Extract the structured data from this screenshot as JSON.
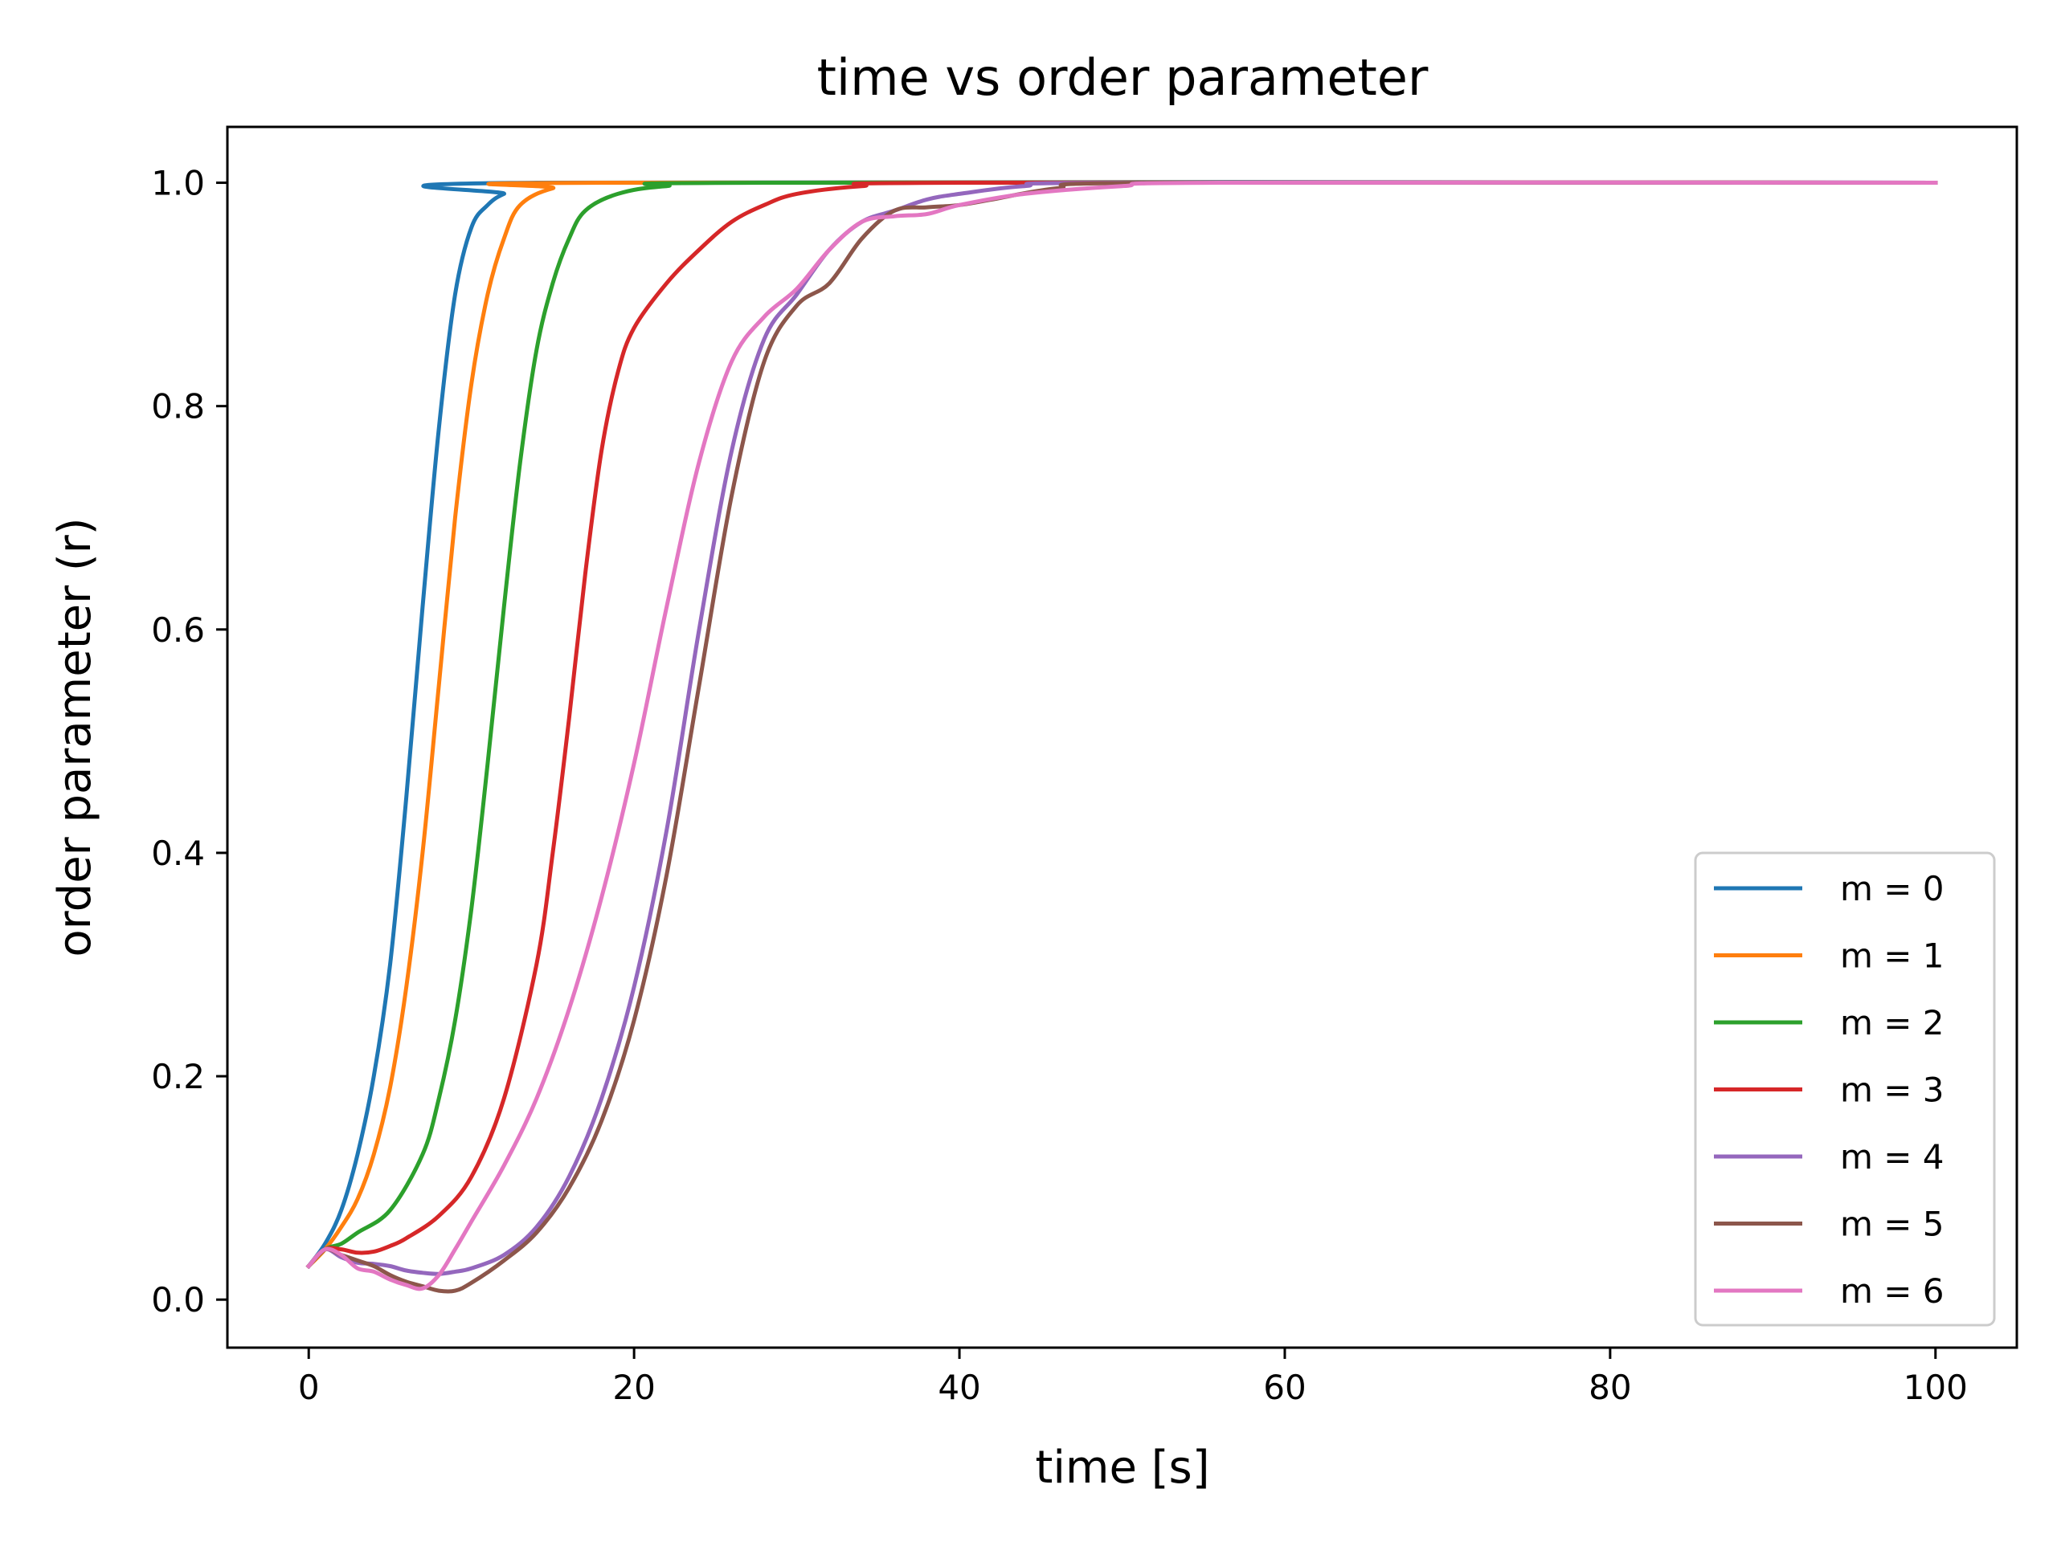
{
  "chart_data": {
    "type": "line",
    "title": "time vs order parameter",
    "xlabel": "time [s]",
    "ylabel": "order parameter (r)",
    "xlim": [
      -5,
      105
    ],
    "ylim": [
      -0.043,
      1.05
    ],
    "xticks": [
      0,
      20,
      40,
      60,
      80,
      100
    ],
    "yticks": [
      0.0,
      0.2,
      0.4,
      0.6,
      0.8,
      1.0
    ],
    "xtick_labels": [
      "0",
      "20",
      "40",
      "60",
      "80",
      "100"
    ],
    "ytick_labels": [
      "0.0",
      "0.2",
      "0.4",
      "0.6",
      "0.8",
      "1.0"
    ],
    "grid": false,
    "legend_position": "lower-right",
    "series": [
      {
        "name": "m = 0",
        "color": "#1f77b4",
        "points": [
          [
            0,
            0.03
          ],
          [
            1,
            0.05
          ],
          [
            2,
            0.08
          ],
          [
            3,
            0.13
          ],
          [
            4,
            0.2
          ],
          [
            5,
            0.3
          ],
          [
            6,
            0.45
          ],
          [
            7,
            0.62
          ],
          [
            8,
            0.78
          ],
          [
            9,
            0.9
          ],
          [
            10,
            0.96
          ],
          [
            11,
            0.98
          ],
          [
            12,
            0.99
          ],
          [
            14,
            1.0
          ],
          [
            100,
            1.0
          ]
        ]
      },
      {
        "name": "m = 1",
        "color": "#ff7f0e",
        "points": [
          [
            0,
            0.03
          ],
          [
            1,
            0.045
          ],
          [
            2,
            0.065
          ],
          [
            3,
            0.09
          ],
          [
            4,
            0.13
          ],
          [
            5,
            0.19
          ],
          [
            6,
            0.28
          ],
          [
            7,
            0.4
          ],
          [
            8,
            0.55
          ],
          [
            9,
            0.7
          ],
          [
            10,
            0.82
          ],
          [
            11,
            0.9
          ],
          [
            12,
            0.95
          ],
          [
            13,
            0.98
          ],
          [
            15,
            0.995
          ],
          [
            18,
            1.0
          ],
          [
            100,
            1.0
          ]
        ]
      },
      {
        "name": "m = 2",
        "color": "#2ca02c",
        "points": [
          [
            0,
            0.03
          ],
          [
            1,
            0.045
          ],
          [
            2,
            0.05
          ],
          [
            3,
            0.06
          ],
          [
            5,
            0.08
          ],
          [
            7,
            0.13
          ],
          [
            8,
            0.18
          ],
          [
            9,
            0.25
          ],
          [
            10,
            0.35
          ],
          [
            11,
            0.48
          ],
          [
            12,
            0.62
          ],
          [
            13,
            0.75
          ],
          [
            14,
            0.85
          ],
          [
            15,
            0.91
          ],
          [
            16,
            0.95
          ],
          [
            17,
            0.975
          ],
          [
            19,
            0.99
          ],
          [
            22,
            0.997
          ],
          [
            28,
            1.0
          ],
          [
            100,
            1.0
          ]
        ]
      },
      {
        "name": "m = 3",
        "color": "#d62728",
        "points": [
          [
            0,
            0.03
          ],
          [
            1,
            0.045
          ],
          [
            2,
            0.045
          ],
          [
            3,
            0.042
          ],
          [
            4,
            0.043
          ],
          [
            5,
            0.048
          ],
          [
            6,
            0.055
          ],
          [
            8,
            0.075
          ],
          [
            10,
            0.11
          ],
          [
            12,
            0.18
          ],
          [
            14,
            0.3
          ],
          [
            15,
            0.4
          ],
          [
            16,
            0.52
          ],
          [
            17,
            0.65
          ],
          [
            18,
            0.76
          ],
          [
            19,
            0.83
          ],
          [
            20,
            0.87
          ],
          [
            22,
            0.91
          ],
          [
            24,
            0.94
          ],
          [
            26,
            0.965
          ],
          [
            28,
            0.98
          ],
          [
            30,
            0.99
          ],
          [
            34,
            0.997
          ],
          [
            40,
            1.0
          ],
          [
            100,
            1.0
          ]
        ]
      },
      {
        "name": "m = 4",
        "color": "#9467bd",
        "points": [
          [
            0,
            0.03
          ],
          [
            1,
            0.045
          ],
          [
            2,
            0.038
          ],
          [
            3,
            0.033
          ],
          [
            4,
            0.032
          ],
          [
            5,
            0.03
          ],
          [
            6,
            0.026
          ],
          [
            7,
            0.024
          ],
          [
            8,
            0.023
          ],
          [
            9,
            0.025
          ],
          [
            10,
            0.028
          ],
          [
            12,
            0.04
          ],
          [
            14,
            0.065
          ],
          [
            16,
            0.11
          ],
          [
            18,
            0.18
          ],
          [
            20,
            0.28
          ],
          [
            22,
            0.42
          ],
          [
            24,
            0.6
          ],
          [
            26,
            0.76
          ],
          [
            28,
            0.86
          ],
          [
            30,
            0.9
          ],
          [
            32,
            0.94
          ],
          [
            34,
            0.965
          ],
          [
            36,
            0.975
          ],
          [
            38,
            0.985
          ],
          [
            40,
            0.99
          ],
          [
            44,
            0.997
          ],
          [
            50,
            1.0
          ],
          [
            100,
            1.0
          ]
        ]
      },
      {
        "name": "m = 5",
        "color": "#8c564b",
        "points": [
          [
            0,
            0.03
          ],
          [
            1,
            0.045
          ],
          [
            2,
            0.04
          ],
          [
            3,
            0.035
          ],
          [
            4,
            0.03
          ],
          [
            5,
            0.022
          ],
          [
            6,
            0.016
          ],
          [
            7,
            0.012
          ],
          [
            8,
            0.008
          ],
          [
            9,
            0.008
          ],
          [
            10,
            0.015
          ],
          [
            12,
            0.035
          ],
          [
            14,
            0.06
          ],
          [
            16,
            0.1
          ],
          [
            18,
            0.16
          ],
          [
            20,
            0.25
          ],
          [
            22,
            0.38
          ],
          [
            24,
            0.55
          ],
          [
            26,
            0.72
          ],
          [
            28,
            0.84
          ],
          [
            30,
            0.89
          ],
          [
            32,
            0.91
          ],
          [
            34,
            0.95
          ],
          [
            36,
            0.975
          ],
          [
            38,
            0.978
          ],
          [
            40,
            0.98
          ],
          [
            42,
            0.985
          ],
          [
            46,
            0.995
          ],
          [
            52,
            1.0
          ],
          [
            100,
            1.0
          ]
        ]
      },
      {
        "name": "m = 6",
        "color": "#e377c2",
        "points": [
          [
            0,
            0.03
          ],
          [
            1,
            0.045
          ],
          [
            2,
            0.04
          ],
          [
            3,
            0.028
          ],
          [
            4,
            0.025
          ],
          [
            5,
            0.018
          ],
          [
            6,
            0.013
          ],
          [
            7,
            0.01
          ],
          [
            8,
            0.022
          ],
          [
            9,
            0.045
          ],
          [
            10,
            0.07
          ],
          [
            12,
            0.12
          ],
          [
            14,
            0.18
          ],
          [
            16,
            0.26
          ],
          [
            18,
            0.36
          ],
          [
            20,
            0.48
          ],
          [
            22,
            0.62
          ],
          [
            24,
            0.75
          ],
          [
            26,
            0.84
          ],
          [
            28,
            0.88
          ],
          [
            30,
            0.905
          ],
          [
            32,
            0.94
          ],
          [
            34,
            0.965
          ],
          [
            36,
            0.97
          ],
          [
            38,
            0.972
          ],
          [
            40,
            0.98
          ],
          [
            44,
            0.99
          ],
          [
            50,
            0.997
          ],
          [
            56,
            1.0
          ],
          [
            100,
            1.0
          ]
        ]
      }
    ]
  }
}
